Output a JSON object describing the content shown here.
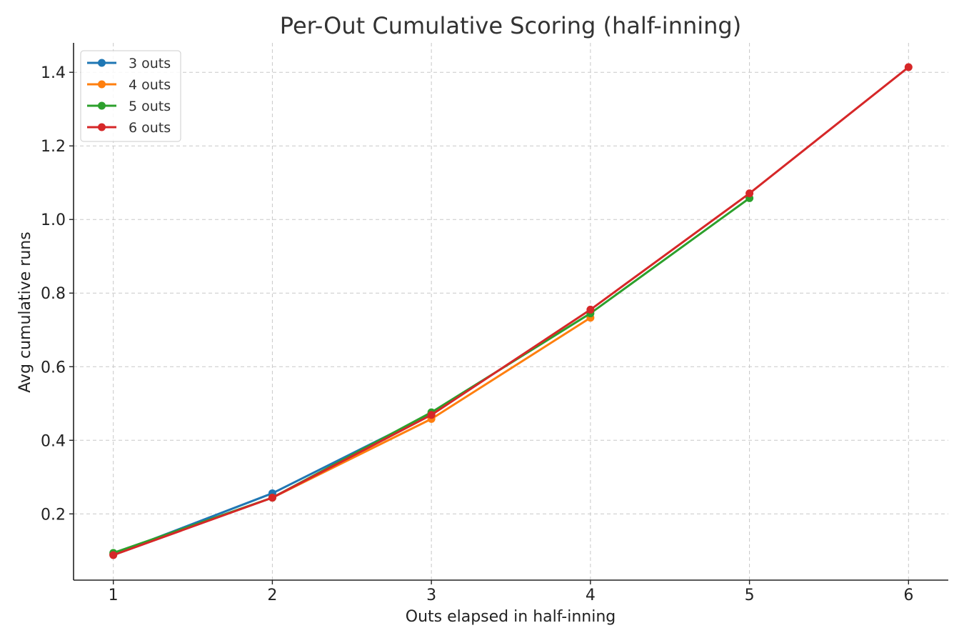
{
  "chart_data": {
    "type": "line",
    "title": "Per-Out Cumulative Scoring (half-inning)",
    "xlabel": "Outs elapsed in half-inning",
    "ylabel": "Avg cumulative runs",
    "xlim": [
      0.75,
      6.25
    ],
    "ylim": [
      0.02,
      1.48
    ],
    "x_ticks": [
      "1",
      "2",
      "3",
      "4",
      "5",
      "6"
    ],
    "x_tick_values": [
      1,
      2,
      3,
      4,
      5,
      6
    ],
    "y_ticks": [
      "0.2",
      "0.4",
      "0.6",
      "0.8",
      "1.0",
      "1.2",
      "1.4"
    ],
    "y_tick_values": [
      0.2,
      0.4,
      0.6,
      0.8,
      1.0,
      1.2,
      1.4
    ],
    "grid": true,
    "legend_position": "top-left",
    "series": [
      {
        "name": "3 outs",
        "color": "#1f77b4",
        "x": [
          1,
          2,
          3
        ],
        "y": [
          0.09,
          0.256,
          0.472
        ]
      },
      {
        "name": "4 outs",
        "color": "#ff7f0e",
        "x": [
          1,
          2,
          3,
          4
        ],
        "y": [
          0.09,
          0.244,
          0.458,
          0.733
        ]
      },
      {
        "name": "5 outs",
        "color": "#2ca02c",
        "x": [
          1,
          2,
          3,
          4,
          5
        ],
        "y": [
          0.094,
          0.244,
          0.476,
          0.745,
          1.058
        ]
      },
      {
        "name": "6 outs",
        "color": "#d62728",
        "x": [
          1,
          2,
          3,
          4,
          5,
          6
        ],
        "y": [
          0.088,
          0.244,
          0.469,
          0.755,
          1.071,
          1.414
        ]
      }
    ]
  }
}
